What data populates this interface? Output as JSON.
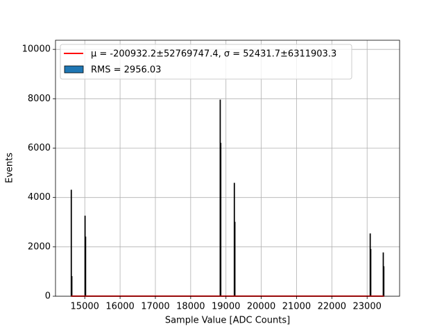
{
  "chart_data": {
    "type": "histogram",
    "xlabel": "Sample Value [ADC Counts]",
    "ylabel": "Events",
    "histogram": {
      "name": "RMS = 2956.03",
      "color": "#1f77b4",
      "edgecolor": "#000000",
      "bins": [
        14610,
        14625,
        14640,
        15000,
        15015,
        15030,
        18830,
        18845,
        18860,
        19230,
        19245,
        19260,
        23080,
        23095,
        23110,
        23450,
        23465,
        23480
      ],
      "counts": [
        4300,
        800,
        0,
        3250,
        2400,
        0,
        7950,
        6200,
        0,
        4580,
        3000,
        0,
        2530,
        1900,
        0,
        1760,
        1200
      ]
    },
    "fit": {
      "name": "μ = -200932.2±52769747.4, σ = 52431.7±6311903.3",
      "color": "#ff0000",
      "x": [
        14610,
        23480
      ],
      "y": [
        5,
        5
      ]
    },
    "xlim": [
      14170,
      23920
    ],
    "ylim": [
      0,
      10370
    ],
    "xticks": [
      15000,
      16000,
      17000,
      18000,
      19000,
      20000,
      21000,
      22000,
      23000
    ],
    "yticks": [
      0,
      2000,
      4000,
      6000,
      8000,
      10000
    ],
    "grid": true,
    "legend": "upper left"
  }
}
